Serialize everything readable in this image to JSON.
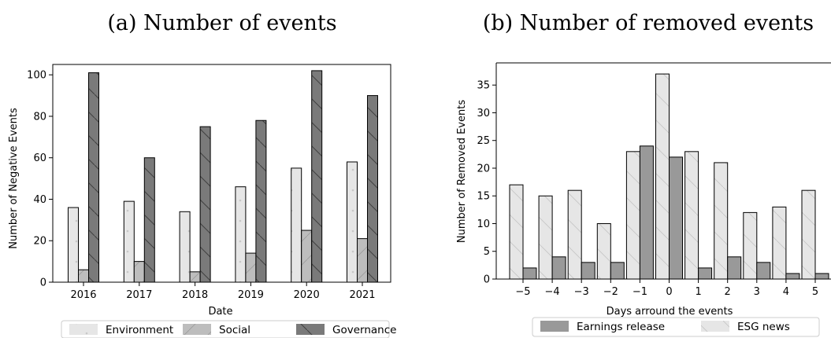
{
  "chart_data": [
    {
      "type": "bar",
      "title": "(a) Number of events",
      "xlabel": "Date",
      "ylabel": "Number of Negative Events",
      "categories": [
        "2016",
        "2017",
        "2018",
        "2019",
        "2020",
        "2021"
      ],
      "ylim": [
        0,
        105
      ],
      "yticks": [
        0,
        20,
        40,
        60,
        80,
        100
      ],
      "series": [
        {
          "name": "Environment",
          "values": [
            36,
            39,
            34,
            46,
            55,
            58
          ],
          "color": "#e6e6e6",
          "hatch": "dots"
        },
        {
          "name": "Social",
          "values": [
            6,
            10,
            5,
            14,
            25,
            21
          ],
          "color": "#bdbdbd",
          "hatch": "forward-slash"
        },
        {
          "name": "Governance",
          "values": [
            101,
            60,
            75,
            78,
            102,
            90
          ],
          "color": "#7a7a7a",
          "hatch": "back-slash"
        }
      ],
      "legend": "bottom",
      "grid": false
    },
    {
      "type": "bar",
      "title": "(b) Number of removed events",
      "xlabel": "Days arround the events",
      "ylabel": "Number of Removed Events",
      "categories": [
        "−5",
        "−4",
        "−3",
        "−2",
        "−1",
        "0",
        "1",
        "2",
        "3",
        "4",
        "5"
      ],
      "ylim": [
        0,
        39
      ],
      "yticks": [
        0,
        5,
        10,
        15,
        20,
        25,
        30,
        35
      ],
      "series": [
        {
          "name": "ESG news",
          "values": [
            17,
            15,
            16,
            10,
            23,
            37,
            23,
            21,
            12,
            13,
            16
          ],
          "color": "#e6e6e6",
          "hatch": "back-slash"
        },
        {
          "name": "Earnings release",
          "values": [
            2,
            4,
            3,
            3,
            24,
            22,
            2,
            4,
            3,
            1,
            1
          ],
          "color": "#999999",
          "hatch": "none"
        }
      ],
      "legend_order": [
        "Earnings release",
        "ESG news"
      ],
      "legend": "bottom",
      "grid": false
    }
  ]
}
